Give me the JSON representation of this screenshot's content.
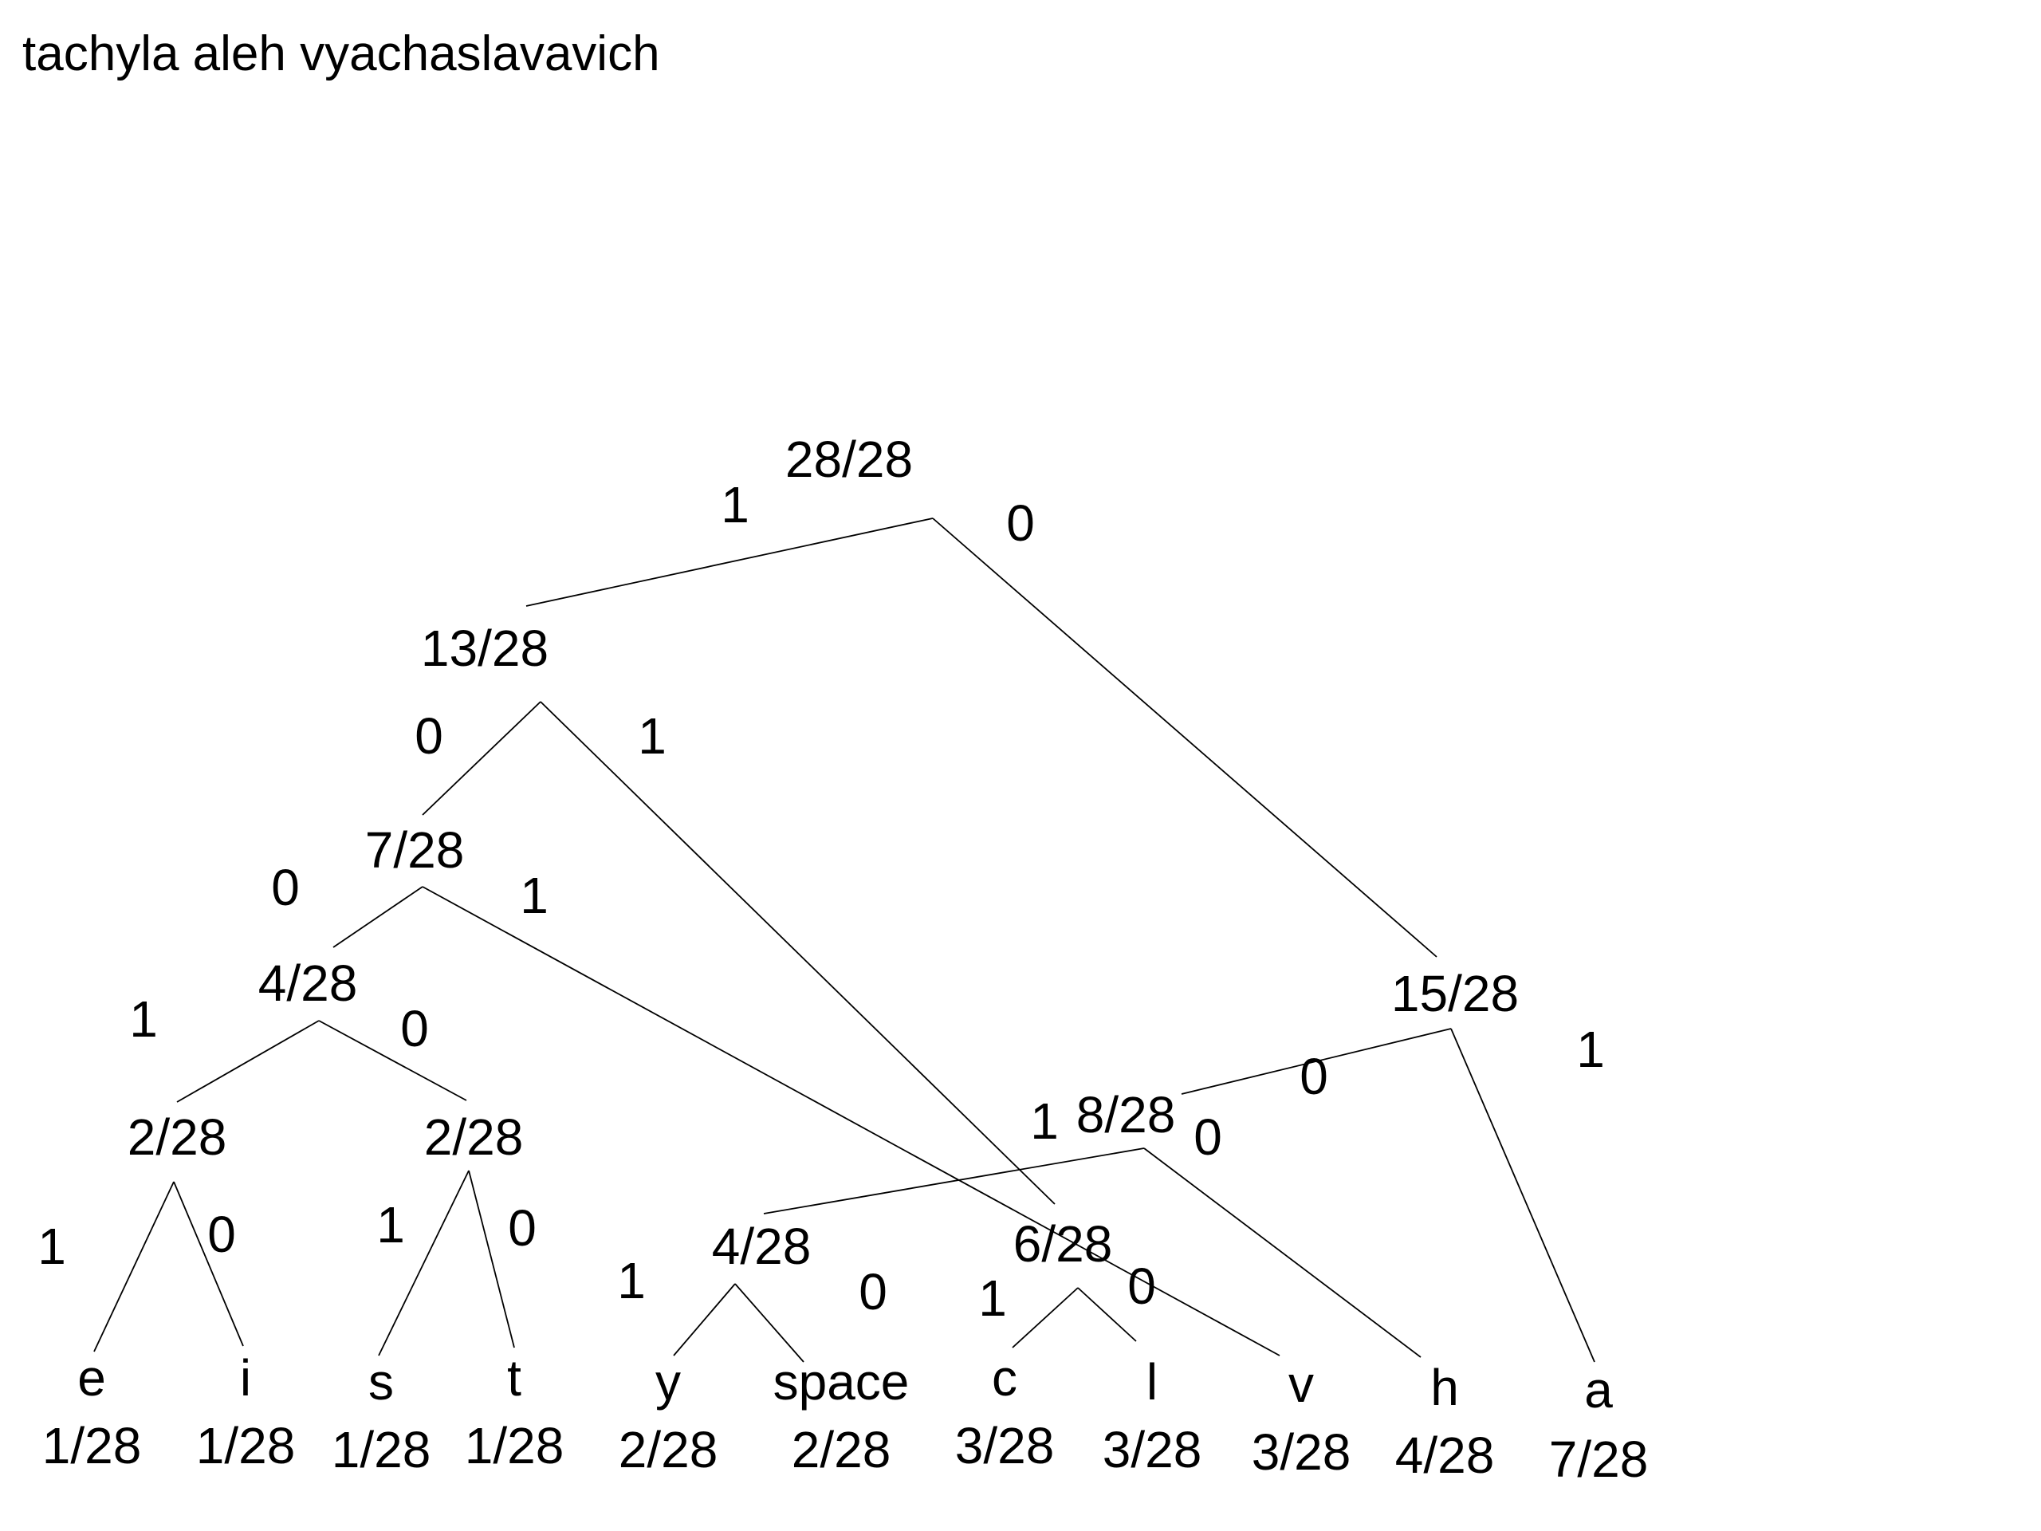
{
  "title": "tachyla aleh vyachaslavavich",
  "nodes": {
    "root": "28/28",
    "n13": "13/28",
    "n15": "15/28",
    "n7": "7/28",
    "n4a": "4/28",
    "n2a": "2/28",
    "n2b": "2/28",
    "n8": "8/28",
    "n4b": "4/28",
    "n6": "6/28"
  },
  "leaves": [
    {
      "symbol": "e",
      "prob": "1/28"
    },
    {
      "symbol": "i",
      "prob": "1/28"
    },
    {
      "symbol": "s",
      "prob": "1/28"
    },
    {
      "symbol": "t",
      "prob": "1/28"
    },
    {
      "symbol": "y",
      "prob": "2/28"
    },
    {
      "symbol": "space",
      "prob": "2/28"
    },
    {
      "symbol": "c",
      "prob": "3/28"
    },
    {
      "symbol": "l",
      "prob": "3/28"
    },
    {
      "symbol": "v",
      "prob": "3/28"
    },
    {
      "symbol": "h",
      "prob": "4/28"
    },
    {
      "symbol": "a",
      "prob": "7/28"
    }
  ],
  "bits": {
    "root_left": "1",
    "root_right": "0",
    "n13_left": "0",
    "n13_right": "1",
    "n7_left": "0",
    "n7_right": "1",
    "n4a_left": "1",
    "n4a_right": "0",
    "n2a_left": "1",
    "n2a_right": "0",
    "n2b_left": "1",
    "n2b_right": "0",
    "n15_left": "0",
    "n15_right": "1",
    "n8_left": "1",
    "n8_right": "0",
    "n4b_left": "1",
    "n4b_right": "0",
    "n6_left": "1",
    "n6_right": "0"
  }
}
